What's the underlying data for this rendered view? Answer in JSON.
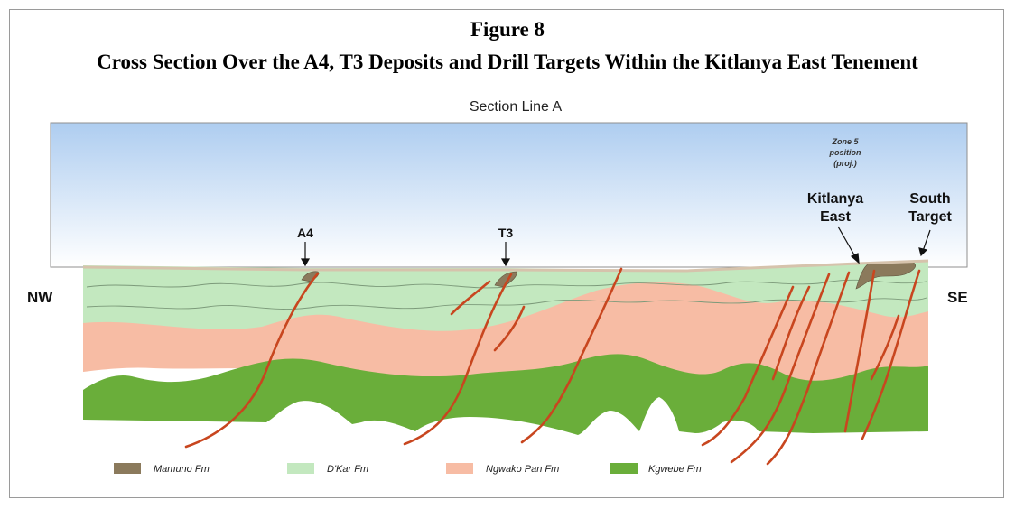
{
  "figure": {
    "number": "Figure 8",
    "title": "Cross Section Over the A4, T3 Deposits and Drill Targets Within the Kitlanya East Tenement"
  },
  "section": {
    "line_label": "Section Line A",
    "nw_label": "NW",
    "se_label": "SE",
    "callouts": {
      "a4": "A4",
      "t3": "T3",
      "zone5_line1": "Zone 5",
      "zone5_line2": "position",
      "zone5_line3": "(proj.)",
      "kitlanya_line1": "Kitlanya",
      "kitlanya_line2": "East",
      "south_line1": "South",
      "south_line2": "Target"
    }
  },
  "legend": [
    {
      "label": "Mamuno Fm",
      "color": "#8b7a5c"
    },
    {
      "label": "D'Kar Fm",
      "color": "#c3e8bf"
    },
    {
      "label": "Ngwako Pan Fm",
      "color": "#f7bca4"
    },
    {
      "label": "Kgwebe Fm",
      "color": "#6aae3a"
    }
  ],
  "colors": {
    "sky_top": "#aecdf0",
    "sky_bottom": "#ffffff",
    "fault": "#c8461f",
    "surface": "#e8d9c8"
  }
}
